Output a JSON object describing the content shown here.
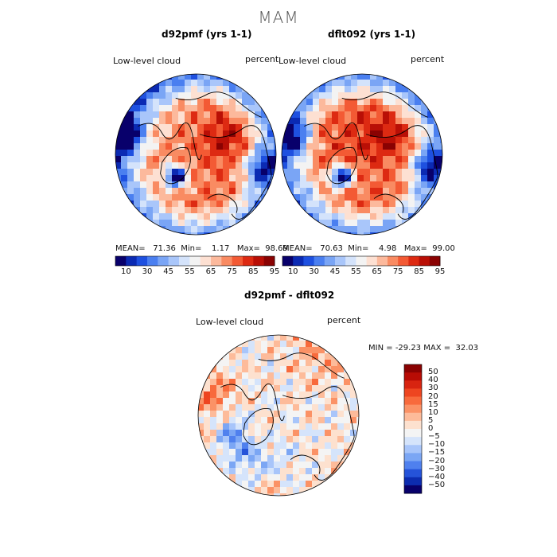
{
  "figure": {
    "season": "MAM",
    "variable": "Low-level cloud",
    "units": "percent"
  },
  "chart_data": [
    {
      "type": "heatmap",
      "projection": "north polar stereographic",
      "title": "d92pmf (yrs 1-1)",
      "field_label": "Low-level cloud",
      "units": "percent",
      "stats": {
        "mean_label": "MEAN=",
        "mean": "71.36",
        "min_label": "Min=",
        "min": "1.17",
        "max_label": "Max=",
        "max": "98.69"
      },
      "colorbar": {
        "ticks": [
          "10",
          "30",
          "45",
          "55",
          "65",
          "75",
          "85",
          "95"
        ],
        "colors": [
          "#08006b",
          "#0b2ab3",
          "#1e50e0",
          "#4a7ff0",
          "#7aa5f5",
          "#a9c6fa",
          "#d4e3fb",
          "#f3f3f3",
          "#fde0d2",
          "#fcb99c",
          "#f98b62",
          "#f35a34",
          "#dd2a12",
          "#b90f06",
          "#8a0202"
        ]
      }
    },
    {
      "type": "heatmap",
      "projection": "north polar stereographic",
      "title": "dflt092 (yrs 1-1)",
      "field_label": "Low-level cloud",
      "units": "percent",
      "stats": {
        "mean_label": "MEAN=",
        "mean": "70.63",
        "min_label": "Min=",
        "min": "4.98",
        "max_label": "Max=",
        "max": "99.00"
      },
      "colorbar": {
        "ticks": [
          "10",
          "30",
          "45",
          "55",
          "65",
          "75",
          "85",
          "95"
        ],
        "colors": [
          "#08006b",
          "#0b2ab3",
          "#1e50e0",
          "#4a7ff0",
          "#7aa5f5",
          "#a9c6fa",
          "#d4e3fb",
          "#f3f3f3",
          "#fde0d2",
          "#fcb99c",
          "#f98b62",
          "#f35a34",
          "#dd2a12",
          "#b90f06",
          "#8a0202"
        ]
      }
    },
    {
      "type": "heatmap",
      "projection": "north polar stereographic",
      "title": "d92pmf - dflt092",
      "field_label": "Low-level cloud",
      "units": "percent",
      "stats": {
        "min_label": "MIN =",
        "min": "-29.23",
        "max_label": "MAX =",
        "max": "32.03"
      },
      "colorbar": {
        "ticks": [
          "50",
          "40",
          "30",
          "20",
          "15",
          "10",
          "5",
          "0",
          "−5",
          "−10",
          "−15",
          "−20",
          "−30",
          "−40",
          "−50"
        ],
        "colors": [
          "#8a0202",
          "#b80c05",
          "#d82410",
          "#ee4520",
          "#f86a3c",
          "#fb9266",
          "#fdbb9a",
          "#fde1cf",
          "#f4f4f4",
          "#d5e4fb",
          "#a8c5fa",
          "#7ba6f4",
          "#4f80ee",
          "#2553d9",
          "#0c2cb0",
          "#08006b"
        ]
      }
    }
  ]
}
